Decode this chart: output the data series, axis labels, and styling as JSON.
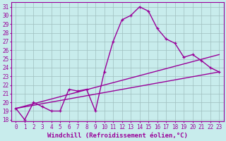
{
  "xlabel": "Windchill (Refroidissement éolien,°C)",
  "ylabel": "",
  "background_color": "#c8ecec",
  "line_color": "#990099",
  "grid_color": "#9fbfbf",
  "xlim": [
    -0.5,
    23.5
  ],
  "ylim": [
    17.8,
    31.5
  ],
  "yticks": [
    18,
    19,
    20,
    21,
    22,
    23,
    24,
    25,
    26,
    27,
    28,
    29,
    30,
    31
  ],
  "xticks": [
    0,
    1,
    2,
    3,
    4,
    5,
    6,
    7,
    8,
    9,
    10,
    11,
    12,
    13,
    14,
    15,
    16,
    17,
    18,
    19,
    20,
    21,
    22,
    23
  ],
  "lines": [
    {
      "x": [
        0,
        1,
        2,
        3,
        4,
        5,
        6,
        7,
        8,
        9,
        10,
        11,
        12,
        13,
        14,
        15,
        16,
        17,
        18,
        19,
        20,
        21,
        22,
        23
      ],
      "y": [
        19.3,
        18.0,
        20.0,
        19.5,
        19.0,
        19.0,
        21.5,
        21.3,
        21.5,
        19.0,
        23.5,
        27.0,
        29.5,
        30.0,
        31.0,
        30.5,
        28.5,
        27.3,
        26.8,
        25.2,
        25.5,
        24.8,
        24.0,
        23.5
      ],
      "marker": "+",
      "linewidth": 1.0
    },
    {
      "x": [
        0,
        23
      ],
      "y": [
        19.3,
        25.5
      ],
      "marker": "None",
      "linewidth": 1.0
    },
    {
      "x": [
        0,
        23
      ],
      "y": [
        19.3,
        23.5
      ],
      "marker": "None",
      "linewidth": 1.0
    }
  ],
  "font_family": "monospace",
  "tick_fontsize": 5.5,
  "xlabel_fontsize": 6.5
}
